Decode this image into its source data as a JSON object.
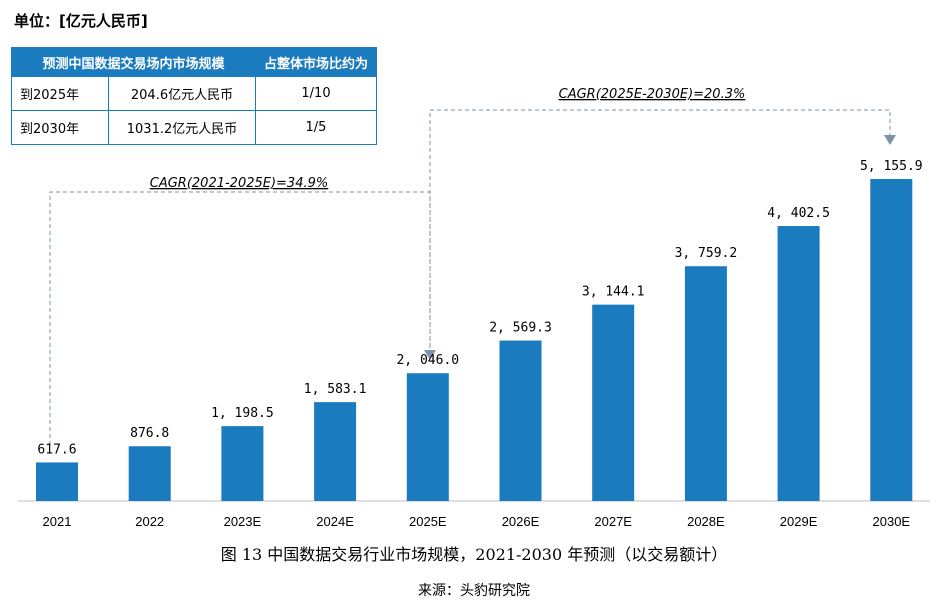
{
  "unit_label": "单位：[亿元人民币]",
  "info_table": {
    "headers": [
      "预测中国数据交易场内市场规模",
      "占整体市场比约为"
    ],
    "rows": [
      [
        "到2025年",
        "204.6亿元人民币",
        "1/10"
      ],
      [
        "到2030年",
        "1031.2亿元人民币",
        "1/5"
      ]
    ]
  },
  "cagr_1": "CAGR(2021-2025E)=34.9%",
  "cagr_2": "CAGR(2025E-2030E)=20.3%",
  "caption": "图 13  中国数据交易行业市场规模，2021-2030 年预测（以交易额计）",
  "source": "来源：头豹研究院",
  "colors": {
    "bar": "#1a7bbf",
    "table_header": "#1a7bbf",
    "dashed": "#7f93a8"
  },
  "chart_data": {
    "type": "bar",
    "categories": [
      "2021",
      "2022",
      "2023E",
      "2024E",
      "2025E",
      "2026E",
      "2027E",
      "2028E",
      "2029E",
      "2030E"
    ],
    "values": [
      617.6,
      876.8,
      1198.5,
      1583.1,
      2046.0,
      2569.3,
      3144.1,
      3759.2,
      4402.5,
      5155.9
    ],
    "value_labels": [
      "617.6",
      "876.8",
      "1, 198.5",
      "1, 583.1",
      "2, 046.0",
      "2, 569.3",
      "3, 144.1",
      "3, 759.2",
      "4, 402.5",
      "5, 155.9"
    ],
    "ylim": [
      0,
      5155.9
    ]
  }
}
